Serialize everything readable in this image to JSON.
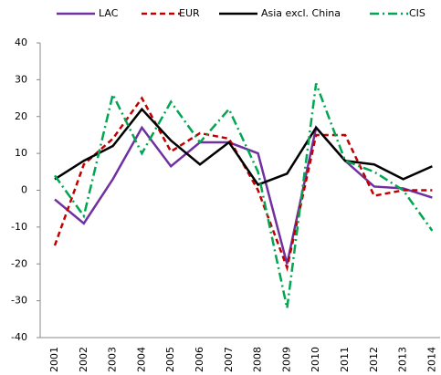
{
  "chart_data": {
    "type": "line",
    "categories": [
      "2001",
      "2002",
      "2003",
      "2004",
      "2005",
      "2006",
      "2007",
      "2008",
      "2009",
      "2010",
      "2011",
      "2012",
      "2013",
      "2014"
    ],
    "series": [
      {
        "name": "LAC",
        "color": "#7030a0",
        "style": "solid",
        "values": [
          -2.5,
          -9,
          3,
          17,
          6.5,
          13,
          13,
          10,
          -20,
          17,
          8,
          1,
          0.5,
          -2
        ]
      },
      {
        "name": "EUR",
        "color": "#c00000",
        "style": "dashed",
        "values": [
          -15,
          7,
          14,
          25,
          10.5,
          15.5,
          14,
          0,
          -21,
          15,
          15,
          -1.5,
          0,
          0
        ]
      },
      {
        "name": "Asia excl. China",
        "color": "#000000",
        "style": "solid",
        "values": [
          3,
          8,
          12,
          22,
          13.5,
          7,
          13,
          1.5,
          4.5,
          17,
          8,
          7,
          3,
          6.5
        ]
      },
      {
        "name": "CIS",
        "color": "#00a651",
        "style": "dashdot",
        "values": [
          4,
          -7,
          26,
          10,
          24,
          13,
          22,
          5,
          -32,
          29,
          8,
          5,
          0,
          -11
        ]
      }
    ],
    "ylim": [
      -40,
      40
    ],
    "yticks": [
      -40,
      -30,
      -20,
      -10,
      0,
      10,
      20,
      30,
      40
    ],
    "grid": false
  }
}
